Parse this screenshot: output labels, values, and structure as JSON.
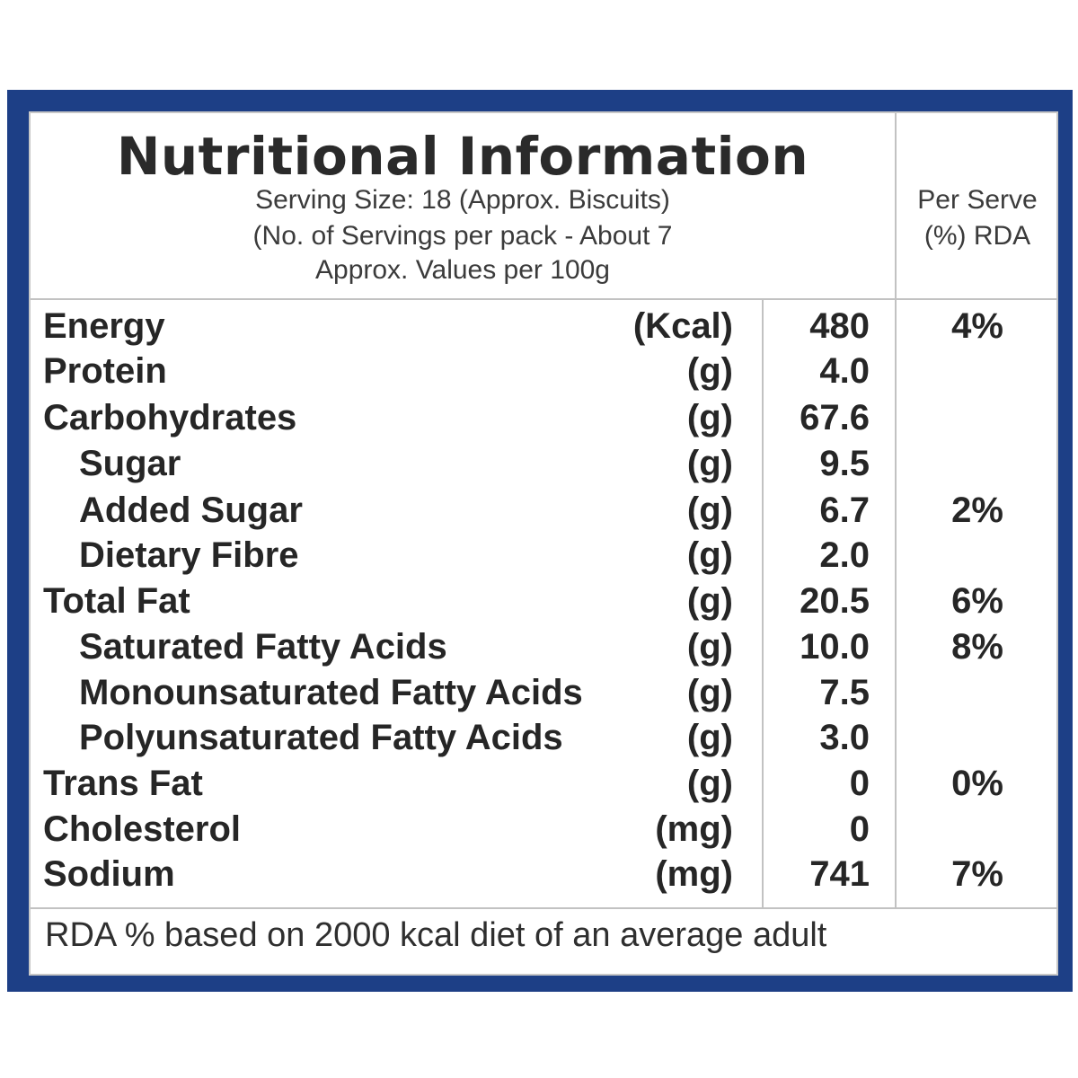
{
  "label": {
    "title": "Nutritional Information",
    "serving_size": "Serving Size: 18 (Approx. Biscuits)",
    "servings_per_pack": "(No. of Servings per pack - About 7",
    "values_basis": "Approx. Values per 100g",
    "rda_header_line1": "Per Serve",
    "rda_header_line2": "(%) RDA",
    "footer": "RDA % based on 2000 kcal diet of an average adult",
    "frame_color": "#1d3f86"
  },
  "nutrients": [
    {
      "name": "Energy",
      "unit": "(Kcal)",
      "value": "480",
      "rda": "4%",
      "indent": false
    },
    {
      "name": "Protein",
      "unit": "(g)",
      "value": "4.0",
      "rda": "",
      "indent": false
    },
    {
      "name": "Carbohydrates",
      "unit": "(g)",
      "value": "67.6",
      "rda": "",
      "indent": false
    },
    {
      "name": "Sugar",
      "unit": "(g)",
      "value": "9.5",
      "rda": "",
      "indent": true
    },
    {
      "name": "Added Sugar",
      "unit": "(g)",
      "value": "6.7",
      "rda": "2%",
      "indent": true
    },
    {
      "name": "Dietary Fibre",
      "unit": "(g)",
      "value": "2.0",
      "rda": "",
      "indent": true
    },
    {
      "name": "Total Fat",
      "unit": "(g)",
      "value": "20.5",
      "rda": "6%",
      "indent": false
    },
    {
      "name": "Saturated Fatty Acids",
      "unit": "(g)",
      "value": "10.0",
      "rda": "8%",
      "indent": true
    },
    {
      "name": "Monounsaturated Fatty Acids",
      "unit": "(g)",
      "value": "7.5",
      "rda": "",
      "indent": true
    },
    {
      "name": "Polyunsaturated Fatty Acids",
      "unit": "(g)",
      "value": "3.0",
      "rda": "",
      "indent": true
    },
    {
      "name": "Trans Fat",
      "unit": "(g)",
      "value": "0",
      "rda": "0%",
      "indent": false
    },
    {
      "name": "Cholesterol",
      "unit": "(mg)",
      "value": "0",
      "rda": "",
      "indent": false
    },
    {
      "name": "Sodium",
      "unit": "(mg)",
      "value": "741",
      "rda": "7%",
      "indent": false
    }
  ]
}
